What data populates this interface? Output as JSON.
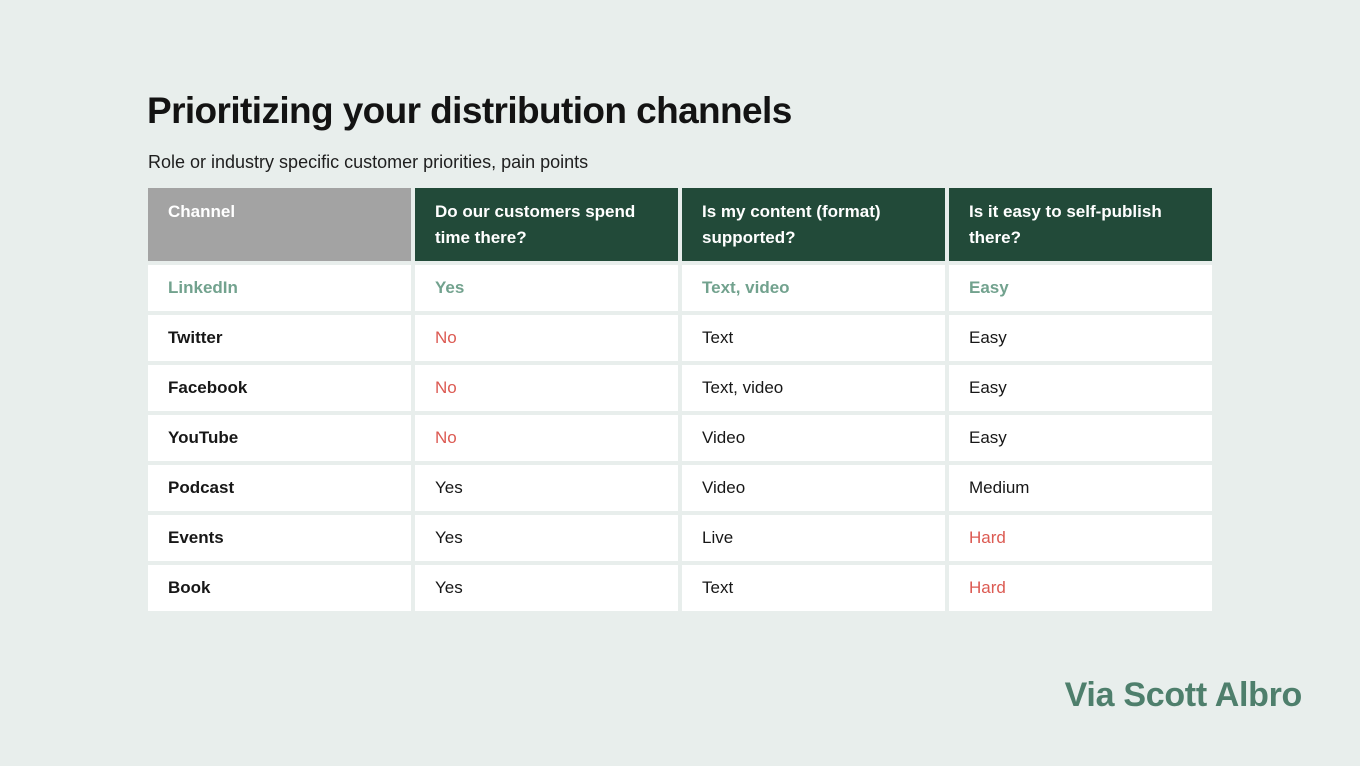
{
  "page": {
    "title": "Prioritizing your distribution channels",
    "subtitle": "Role or industry specific customer priorities, pain points",
    "attribution": "Via Scott Albro"
  },
  "colors": {
    "background": "#e8eeec",
    "header_green": "#224a39",
    "header_gray": "#a3a3a3",
    "positive_green": "#72a28e",
    "negative_red": "#dc5a52",
    "attribution_green": "#4e7f6c"
  },
  "chart_data": {
    "type": "table",
    "title": "Prioritizing your distribution channels",
    "columns": [
      "Channel",
      "Do our customers spend time there?",
      "Is my content (format) supported?",
      "Is it easy to self-publish there?"
    ],
    "rows": [
      {
        "cells": [
          {
            "text": "LinkedIn",
            "tone": "green"
          },
          {
            "text": "Yes",
            "tone": "green"
          },
          {
            "text": "Text, video",
            "tone": "green"
          },
          {
            "text": "Easy",
            "tone": "green"
          }
        ]
      },
      {
        "cells": [
          {
            "text": "Twitter",
            "tone": "dark"
          },
          {
            "text": "No",
            "tone": "red"
          },
          {
            "text": "Text",
            "tone": "dark"
          },
          {
            "text": "Easy",
            "tone": "dark"
          }
        ]
      },
      {
        "cells": [
          {
            "text": "Facebook",
            "tone": "dark"
          },
          {
            "text": "No",
            "tone": "red"
          },
          {
            "text": "Text, video",
            "tone": "dark"
          },
          {
            "text": "Easy",
            "tone": "dark"
          }
        ]
      },
      {
        "cells": [
          {
            "text": "YouTube",
            "tone": "dark"
          },
          {
            "text": "No",
            "tone": "red"
          },
          {
            "text": "Video",
            "tone": "dark"
          },
          {
            "text": "Easy",
            "tone": "dark"
          }
        ]
      },
      {
        "cells": [
          {
            "text": "Podcast",
            "tone": "dark"
          },
          {
            "text": "Yes",
            "tone": "dark"
          },
          {
            "text": "Video",
            "tone": "dark"
          },
          {
            "text": "Medium",
            "tone": "dark"
          }
        ]
      },
      {
        "cells": [
          {
            "text": "Events",
            "tone": "dark"
          },
          {
            "text": "Yes",
            "tone": "dark"
          },
          {
            "text": "Live",
            "tone": "dark"
          },
          {
            "text": "Hard",
            "tone": "red"
          }
        ]
      },
      {
        "cells": [
          {
            "text": "Book",
            "tone": "dark"
          },
          {
            "text": "Yes",
            "tone": "dark"
          },
          {
            "text": "Text",
            "tone": "dark"
          },
          {
            "text": "Hard",
            "tone": "red"
          }
        ]
      }
    ]
  }
}
